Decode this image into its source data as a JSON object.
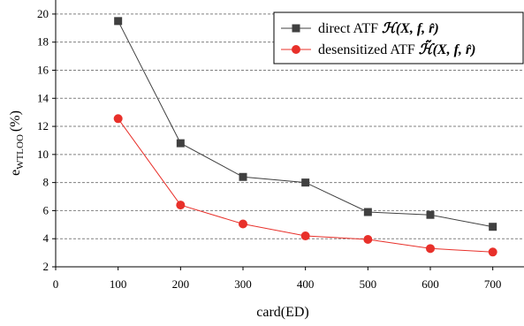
{
  "chart_data": {
    "type": "line",
    "title": "",
    "xlabel": "card(ED)",
    "ylabel": "e",
    "ylabel_sub": "WTLOO",
    "ylabel_unit": "(%)",
    "xlim": [
      0,
      750
    ],
    "ylim": [
      2,
      21
    ],
    "x_ticks": [
      0,
      100,
      200,
      300,
      400,
      500,
      600,
      700
    ],
    "y_ticks": [
      2,
      4,
      6,
      8,
      10,
      12,
      14,
      16,
      18,
      20
    ],
    "grid": "horizontal-dashed",
    "legend_position": "top-right",
    "series": [
      {
        "name_prefix": "direct ATF ",
        "name_math": "ℋ(X, f, r̂)",
        "color": "#404040",
        "marker": "square",
        "x": [
          100,
          200,
          300,
          400,
          500,
          600,
          700
        ],
        "y": [
          19.5,
          10.8,
          8.4,
          8.0,
          5.9,
          5.7,
          4.85
        ]
      },
      {
        "name_prefix": "desensitized ATF ",
        "name_math": "ℋ̃(X, f, r̂)",
        "color": "#e8302a",
        "marker": "circle",
        "x": [
          100,
          200,
          300,
          400,
          500,
          600,
          700
        ],
        "y": [
          12.55,
          6.4,
          5.05,
          4.2,
          3.95,
          3.3,
          3.05
        ]
      }
    ]
  }
}
